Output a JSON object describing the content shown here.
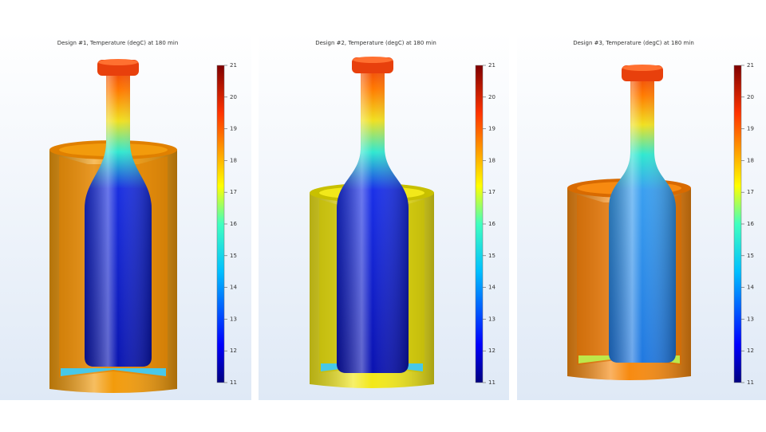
{
  "panels": [
    {
      "title": "Design #1, Temperature (degC) at 180 min",
      "colorbar_ticks": [
        21,
        20,
        19,
        18,
        17,
        16,
        15,
        14,
        13,
        12,
        11
      ]
    },
    {
      "title": "Design #2, Temperature (degC) at 180 min",
      "colorbar_ticks": [
        21,
        20,
        19,
        18,
        17,
        16,
        15,
        14,
        13,
        12,
        11
      ]
    },
    {
      "title": "Design #3, Temperature (degC) at 180 min",
      "colorbar_ticks": [
        21,
        20,
        19,
        18,
        17,
        16,
        15,
        14,
        13,
        12,
        11
      ]
    }
  ]
}
